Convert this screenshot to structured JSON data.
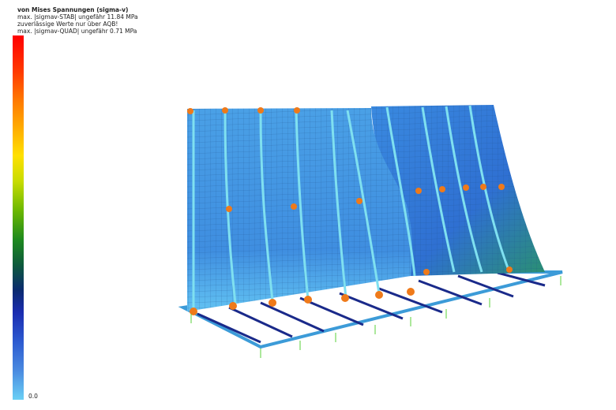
{
  "legend": {
    "title": "von Mises Spannungen (sigma-v)",
    "line1": "max. |sigmav-STAB| ungefähr 11.84 MPa",
    "line2": "zuverlässige Werte nur über AQB!",
    "line3": "max. |sigmav-QUAD| ungefähr 0.71 MPa",
    "min_label": "0.0",
    "colors": [
      "#ff0000",
      "#ff7a00",
      "#ffe000",
      "#6cb800",
      "#0d5a3c",
      "#1a2cb0",
      "#6ad0f5"
    ]
  }
}
